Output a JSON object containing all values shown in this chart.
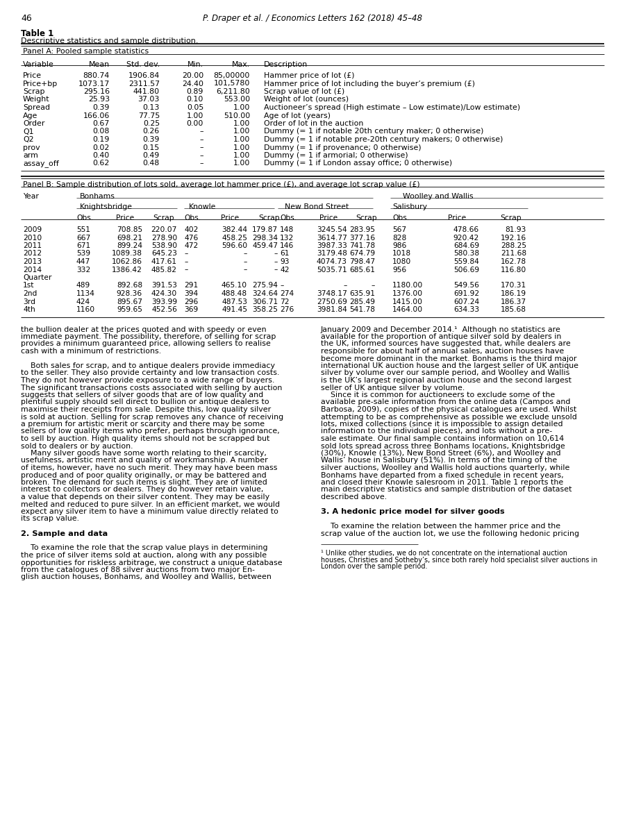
{
  "page_number": "46",
  "header_text": "P. Draper et al. / Economics Letters 162 (2018) 45–48",
  "table_title": "Table 1",
  "table_subtitle": "Descriptive statistics and sample distribution.",
  "panel_a_title": "Panel A: Pooled sample statistics",
  "panel_a_headers": [
    "Variable",
    "Mean",
    "Std. dev.",
    "Min.",
    "Max.",
    "Description"
  ],
  "panel_a_rows": [
    [
      "Price",
      "880.74",
      "1906.84",
      "20.00",
      "85,00000",
      "Hammer price of lot (£)"
    ],
    [
      "Price+bp",
      "1073.17",
      "2311.57",
      "24.40",
      "101,5780",
      "Hammer price of lot including the buyer’s premium (£)"
    ],
    [
      "Scrap",
      "295.16",
      "441.80",
      "0.89",
      "6,211.80",
      "Scrap value of lot (£)"
    ],
    [
      "Weight",
      "25.93",
      "37.03",
      "0.10",
      "553.00",
      "Weight of lot (ounces)"
    ],
    [
      "Spread",
      "0.39",
      "0.13",
      "0.05",
      "1.00",
      "Auctioneer’s spread (High estimate – Low estimate)/Low estimate)"
    ],
    [
      "Age",
      "166.06",
      "77.75",
      "1.00",
      "510.00",
      "Age of lot (years)"
    ],
    [
      "Order",
      "0.67",
      "0.25",
      "0.00",
      "1.00",
      "Order of lot in the auction"
    ],
    [
      "Q1",
      "0.08",
      "0.26",
      "–",
      "1.00",
      "Dummy (= 1 if notable 20th century maker; 0 otherwise)"
    ],
    [
      "Q2",
      "0.19",
      "0.39",
      "–",
      "1.00",
      "Dummy (= 1 if notable pre-20th century makers; 0 otherwise)"
    ],
    [
      "prov",
      "0.02",
      "0.15",
      "–",
      "1.00",
      "Dummy (= 1 if provenance; 0 otherwise)"
    ],
    [
      "arm",
      "0.40",
      "0.49",
      "–",
      "1.00",
      "Dummy (= 1 if armorial; 0 otherwise)"
    ],
    [
      "assay_off",
      "0.62",
      "0.48",
      "–",
      "1.00",
      "Dummy (= 1 if London assay office; 0 otherwise)"
    ]
  ],
  "panel_b_title": "Panel B: Sample distribution of lots sold, average lot hammer price (£), and average lot scrap value (£)",
  "panel_b_group1": "Bonhams",
  "panel_b_group2": "Woolley and Wallis",
  "panel_b_sub1": "Knightsbridge",
  "panel_b_sub2": "Knowle",
  "panel_b_sub3": "New Bond Street",
  "panel_b_sub4": "Salisbury",
  "panel_b_rows": [
    [
      "2009",
      "551",
      "708.85",
      "220.07",
      "402",
      "382.44",
      "179.87",
      "148",
      "3245.54",
      "283.95",
      "567",
      "478.66",
      "81.93"
    ],
    [
      "2010",
      "667",
      "698.21",
      "278.90",
      "476",
      "458.25",
      "298.34",
      "132",
      "3614.77",
      "377.16",
      "828",
      "920.42",
      "192.16"
    ],
    [
      "2011",
      "671",
      "899.24",
      "538.90",
      "472",
      "596.60",
      "459.47",
      "146",
      "3987.33",
      "741.78",
      "986",
      "684.69",
      "288.25"
    ],
    [
      "2012",
      "539",
      "1089.38",
      "645.23",
      "–",
      "–",
      "–",
      "61",
      "3179.48",
      "674.79",
      "1018",
      "580.38",
      "211.68"
    ],
    [
      "2013",
      "447",
      "1062.86",
      "417.61",
      "–",
      "–",
      "–",
      "93",
      "4074.73",
      "798.47",
      "1080",
      "559.84",
      "162.78"
    ],
    [
      "2014",
      "332",
      "1386.42",
      "485.82",
      "–",
      "–",
      "–",
      "42",
      "5035.71",
      "685.61",
      "956",
      "506.69",
      "116.80"
    ]
  ],
  "panel_b_quarter_label": "Quarter",
  "panel_b_quarter_rows": [
    [
      "1st",
      "489",
      "892.68",
      "391.53",
      "291",
      "465.10",
      "275.94",
      "–",
      "–",
      "–",
      "1180.00",
      "549.56",
      "170.31"
    ],
    [
      "2nd",
      "1134",
      "928.36",
      "424.30",
      "394",
      "488.48",
      "324.64",
      "274",
      "3748.17",
      "635.91",
      "1376.00",
      "691.92",
      "186.19"
    ],
    [
      "3rd",
      "424",
      "895.67",
      "393.99",
      "296",
      "487.53",
      "306.71",
      "72",
      "2750.69",
      "285.49",
      "1415.00",
      "607.24",
      "186.37"
    ],
    [
      "4th",
      "1160",
      "959.65",
      "452.56",
      "369",
      "491.45",
      "358.25",
      "276",
      "3981.84",
      "541.78",
      "1464.00",
      "634.33",
      "185.68"
    ]
  ],
  "body_text_left": [
    "the bullion dealer at the prices quoted and with speedy or even",
    "immediate payment. The possibility, therefore, of selling for scrap",
    "provides a minimum guaranteed price, allowing sellers to realise",
    "cash with a minimum of restrictions.",
    "",
    "    Both sales for scrap, and to antique dealers provide immediacy",
    "to the seller. They also provide certainty and low transaction costs.",
    "They do not however provide exposure to a wide range of buyers.",
    "The significant transactions costs associated with selling by auction",
    "suggests that sellers of silver goods that are of low quality and",
    "plentiful supply should sell direct to bullion or antique dealers to",
    "maximise their receipts from sale. Despite this, low quality silver",
    "is sold at auction. Selling for scrap removes any chance of receiving",
    "a premium for artistic merit or scarcity and there may be some",
    "sellers of low quality items who prefer, perhaps through ignorance,",
    "to sell by auction. High quality items should not be scrapped but",
    "sold to dealers or by auction.",
    "    Many silver goods have some worth relating to their scarcity,",
    "usefulness, artistic merit and quality of workmanship. A number",
    "of items, however, have no such merit. They may have been mass",
    "produced and of poor quality originally, or may be battered and",
    "broken. The demand for such items is slight. They are of limited",
    "interest to collectors or dealers. They do however retain value,",
    "a value that depends on their silver content. They may be easily",
    "melted and reduced to pure silver. In an efficient market, we would",
    "expect any silver item to have a minimum value directly related to",
    "its scrap value.",
    "",
    "2. Sample and data",
    "",
    "    To examine the role that the scrap value plays in determining",
    "the price of silver items sold at auction, along with any possible",
    "opportunities for riskless arbitrage, we construct a unique database",
    "from the catalogues of 88 silver auctions from two major En-",
    "glish auction houses, Bonhams, and Woolley and Wallis, between"
  ],
  "body_text_right": [
    "January 2009 and December 2014.¹  Although no statistics are",
    "available for the proportion of antique silver sold by dealers in",
    "the UK, informed sources have suggested that, while dealers are",
    "responsible for about half of annual sales, auction houses have",
    "become more dominant in the market. Bonhams is the third major",
    "international UK auction house and the largest seller of UK antique",
    "silver by volume over our sample period, and Woolley and Wallis",
    "is the UK’s largest regional auction house and the second largest",
    "seller of UK antique silver by volume.",
    "    Since it is common for auctioneers to exclude some of the",
    "available pre-sale information from the online data (Campos and",
    "Barbosa, 2009), copies of the physical catalogues are used. Whilst",
    "attempting to be as comprehensive as possible we exclude unsold",
    "lots, mixed collections (since it is impossible to assign detailed",
    "information to the individual pieces), and lots without a pre-",
    "sale estimate. Our final sample contains information on 10,614",
    "sold lots spread across three Bonhams locations, Knightsbridge",
    "(30%), Knowle (13%), New Bond Street (6%), and Woolley and",
    "Wallis’ house in Salisbury (51%). In terms of the timing of the",
    "silver auctions, Woolley and Wallis hold auctions quarterly, while",
    "Bonhams have departed from a fixed schedule in recent years,",
    "and closed their Knowle salesroom in 2011. Table 1 reports the",
    "main descriptive statistics and sample distribution of the dataset",
    "described above.",
    "",
    "3. A hedonic price model for silver goods",
    "",
    "    To examine the relation between the hammer price and the",
    "scrap value of the auction lot, we use the following hedonic pricing"
  ],
  "footnote_lines": [
    "¹ Unlike other studies, we do not concentrate on the international auction",
    "houses, Christies and Sotheby’s, since both rarely hold specialist silver auctions in",
    "London over the sample period."
  ]
}
